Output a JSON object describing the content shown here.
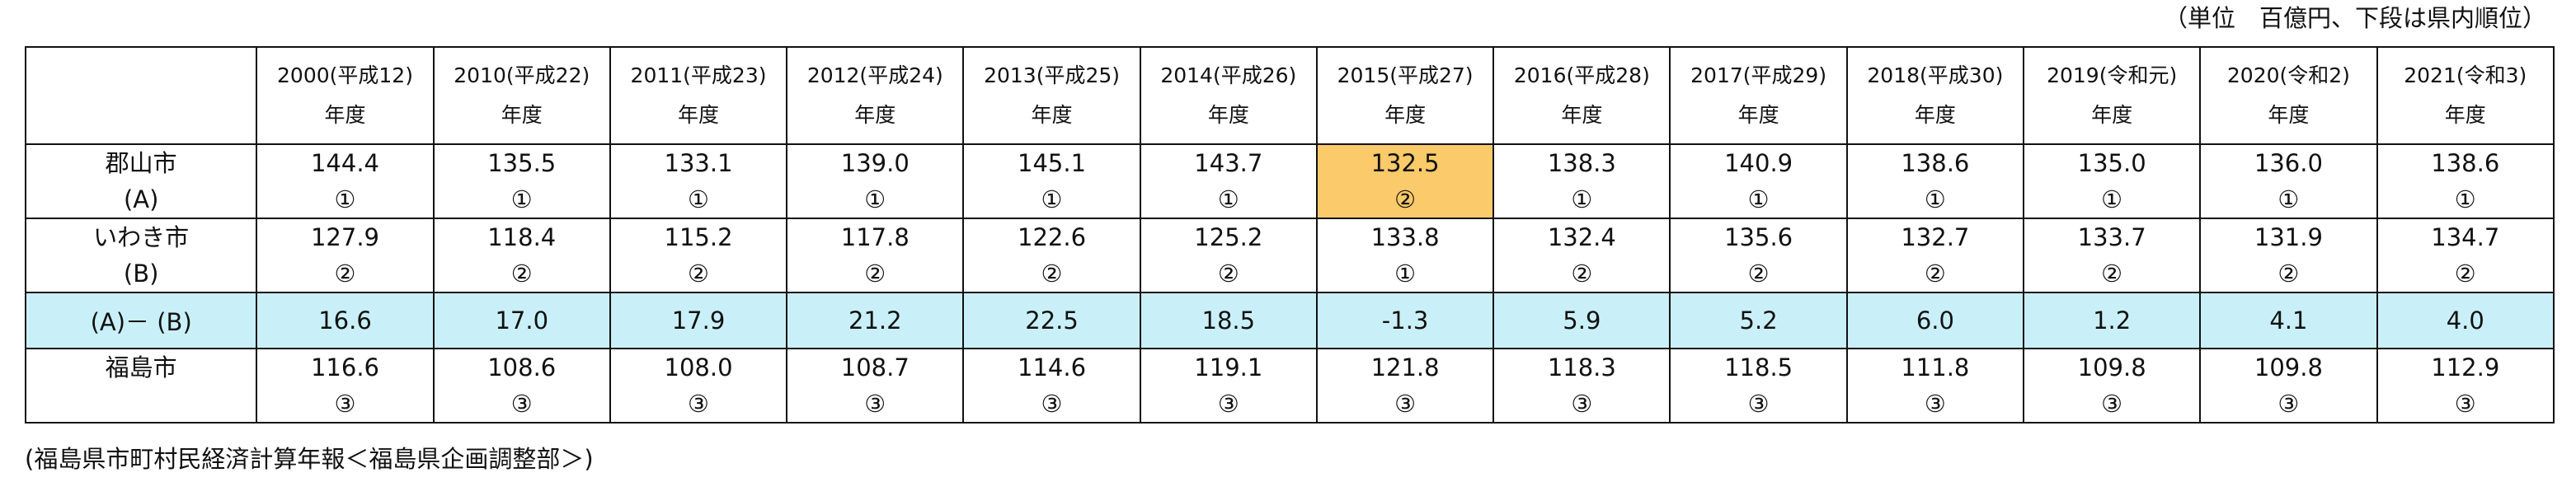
{
  "unit_note": "（単位　百億円、下段は県内順位）",
  "source_note": "(福島県市町村民経済計算年報＜福島県企画調整部＞)",
  "colors": {
    "diff_row_bg": "#c9f0f8",
    "highlight_cell": "#fbca6a"
  },
  "headers": [
    {
      "year": "2000(平成12)",
      "nendo": "年度"
    },
    {
      "year": "2010(平成22)",
      "nendo": "年度"
    },
    {
      "year": "2011(平成23)",
      "nendo": "年度"
    },
    {
      "year": "2012(平成24)",
      "nendo": "年度"
    },
    {
      "year": "2013(平成25)",
      "nendo": "年度"
    },
    {
      "year": "2014(平成26)",
      "nendo": "年度"
    },
    {
      "year": "2015(平成27)",
      "nendo": "年度"
    },
    {
      "year": "2016(平成28)",
      "nendo": "年度"
    },
    {
      "year": "2017(平成29)",
      "nendo": "年度"
    },
    {
      "year": "2018(平成30)",
      "nendo": "年度"
    },
    {
      "year": "2019(令和元)",
      "nendo": "年度"
    },
    {
      "year": "2020(令和2)",
      "nendo": "年度"
    },
    {
      "year": "2021(令和3)",
      "nendo": "年度"
    }
  ],
  "koriyama": {
    "name": "郡山市",
    "tag": "(A)",
    "values": [
      "144.4",
      "135.5",
      "133.1",
      "139.0",
      "145.1",
      "143.7",
      "132.5",
      "138.3",
      "140.9",
      "138.6",
      "135.0",
      "136.0",
      "138.6"
    ],
    "ranks": [
      "①",
      "①",
      "①",
      "①",
      "①",
      "①",
      "②",
      "①",
      "①",
      "①",
      "①",
      "①",
      "①"
    ],
    "highlight_index": 6
  },
  "iwaki": {
    "name": "いわき市",
    "tag": "(B)",
    "values": [
      "127.9",
      "118.4",
      "115.2",
      "117.8",
      "122.6",
      "125.2",
      "133.8",
      "132.4",
      "135.6",
      "132.7",
      "133.7",
      "131.9",
      "134.7"
    ],
    "ranks": [
      "②",
      "②",
      "②",
      "②",
      "②",
      "②",
      "①",
      "②",
      "②",
      "②",
      "②",
      "②",
      "②"
    ]
  },
  "diff": {
    "label": "(A)－ (B)",
    "values": [
      "16.6",
      "17.0",
      "17.9",
      "21.2",
      "22.5",
      "18.5",
      "-1.3",
      "5.9",
      "5.2",
      "6.0",
      "1.2",
      "4.1",
      "4.0"
    ]
  },
  "fukushima": {
    "name": "福島市",
    "values": [
      "116.6",
      "108.6",
      "108.0",
      "108.7",
      "114.6",
      "119.1",
      "121.8",
      "118.3",
      "118.5",
      "111.8",
      "109.8",
      "109.8",
      "112.9"
    ],
    "ranks": [
      "③",
      "③",
      "③",
      "③",
      "③",
      "③",
      "③",
      "③",
      "③",
      "③",
      "③",
      "③",
      "③"
    ]
  }
}
